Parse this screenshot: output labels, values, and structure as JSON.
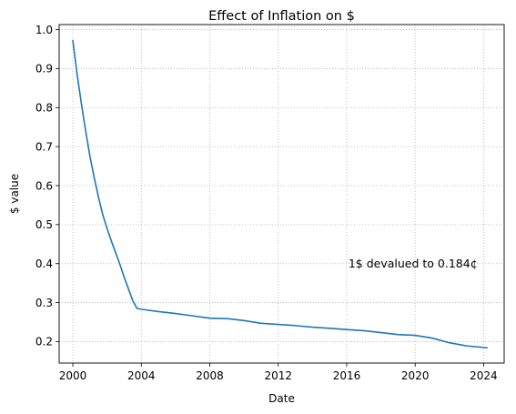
{
  "chart_data": {
    "type": "line",
    "title": "Effect of Inflation on $",
    "xlabel": "Date",
    "ylabel": "$ value",
    "xlim": [
      1999.2,
      2025.2
    ],
    "ylim": [
      0.145,
      1.013
    ],
    "xticks": [
      2000,
      2004,
      2008,
      2012,
      2016,
      2020,
      2024
    ],
    "xtick_labels": [
      "2000",
      "2004",
      "2008",
      "2012",
      "2016",
      "2020",
      "2024"
    ],
    "yticks": [
      0.2,
      0.3,
      0.4,
      0.5,
      0.6,
      0.7,
      0.8,
      0.9,
      1.0
    ],
    "ytick_labels": [
      "0.2",
      "0.3",
      "0.4",
      "0.5",
      "0.6",
      "0.7",
      "0.8",
      "0.9",
      "1.0"
    ],
    "grid": true,
    "grid_style": "dotted",
    "series": [
      {
        "color": "#1f77b4",
        "x": [
          2000.0,
          2000.25,
          2000.5,
          2000.75,
          2001.0,
          2001.25,
          2001.5,
          2001.75,
          2002.0,
          2002.25,
          2002.5,
          2002.75,
          2003.0,
          2003.25,
          2003.5,
          2003.75,
          2004.0,
          2005.0,
          2006.0,
          2007.0,
          2008.0,
          2009.0,
          2010.0,
          2011.0,
          2012.0,
          2013.0,
          2014.0,
          2015.0,
          2016.0,
          2017.0,
          2018.0,
          2019.0,
          2020.0,
          2021.0,
          2022.0,
          2023.0,
          2024.0,
          2024.2
        ],
        "y": [
          0.972,
          0.885,
          0.81,
          0.74,
          0.675,
          0.62,
          0.57,
          0.525,
          0.49,
          0.458,
          0.428,
          0.398,
          0.365,
          0.335,
          0.305,
          0.285,
          0.283,
          0.277,
          0.272,
          0.266,
          0.26,
          0.259,
          0.254,
          0.247,
          0.244,
          0.241,
          0.237,
          0.234,
          0.231,
          0.228,
          0.223,
          0.218,
          0.216,
          0.209,
          0.197,
          0.189,
          0.185,
          0.184
        ]
      }
    ],
    "annotations": [
      {
        "text": "1$ devalued to 0.184¢",
        "x": 2016.1,
        "y": 0.4
      }
    ]
  }
}
